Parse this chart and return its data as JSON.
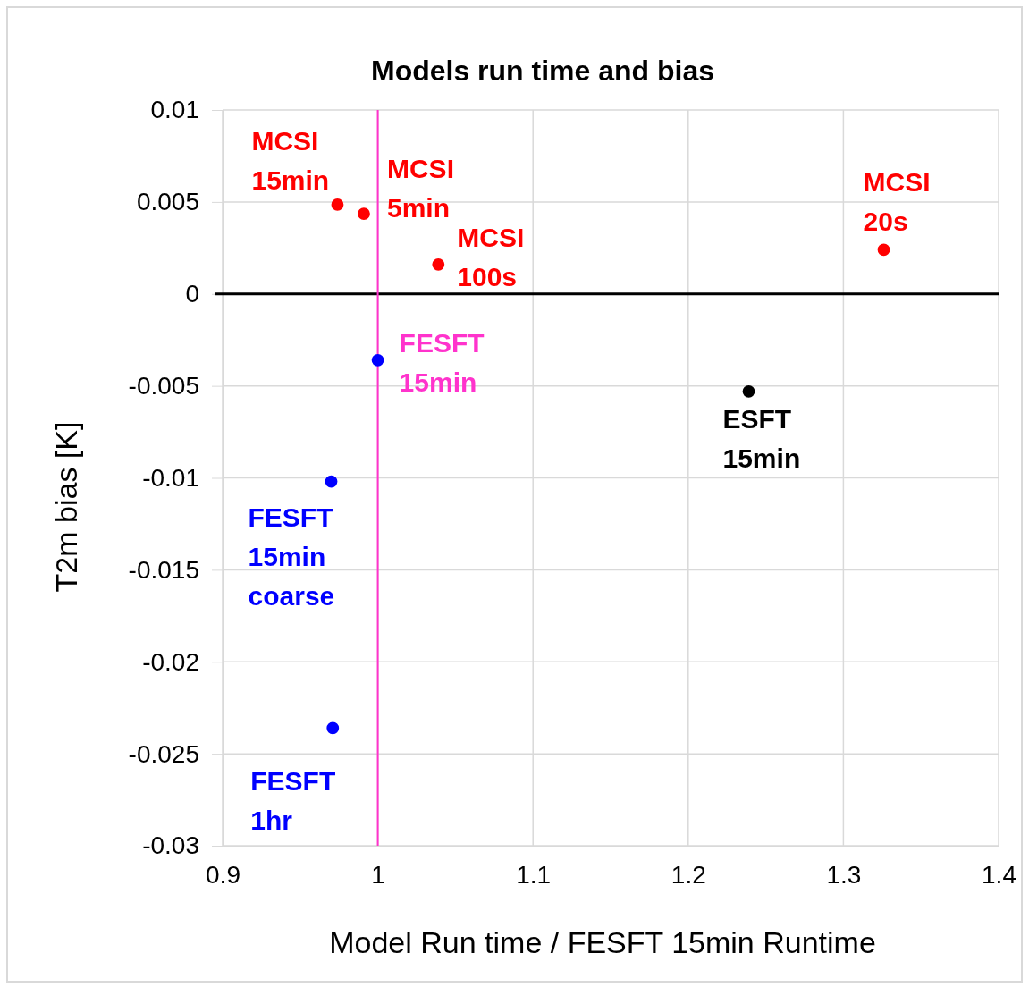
{
  "chart_data": {
    "type": "scatter",
    "title": "Models run time and bias",
    "xlabel": "Model Run time / FESFT 15min Runtime",
    "ylabel": "T2m bias [K]",
    "xlim": [
      0.9,
      1.4
    ],
    "xticks": [
      0.9,
      1,
      1.1,
      1.2,
      1.3,
      1.4
    ],
    "ylim": [
      -0.03,
      0.01
    ],
    "yticks": [
      -0.03,
      -0.025,
      -0.02,
      -0.015,
      -0.01,
      -0.005,
      0,
      0.005,
      0.01
    ],
    "grid": true,
    "marker": "circle",
    "ref_lines": [
      {
        "axis": "y",
        "value": 0,
        "color": "#000000"
      },
      {
        "axis": "x",
        "value": 1,
        "label": "FESFT 15min",
        "color": "#ff33cc"
      }
    ],
    "series": [
      {
        "name": "MCSI 15min",
        "color": "#ff0000",
        "x": [
          0.974
        ],
        "values": [
          0.00485
        ]
      },
      {
        "name": "MCSI 5min",
        "color": "#ff0000",
        "x": [
          0.991
        ],
        "values": [
          0.00436
        ]
      },
      {
        "name": "MCSI 100s",
        "color": "#ff0000",
        "x": [
          1.039
        ],
        "values": [
          0.0016
        ]
      },
      {
        "name": "MCSI 20s",
        "color": "#ff0000",
        "x": [
          1.326
        ],
        "values": [
          0.0024
        ]
      },
      {
        "color": "#0000ff",
        "x": [
          1.0
        ],
        "values": [
          -0.0036
        ]
      },
      {
        "name": "ESFT 15min",
        "color": "#000000",
        "x": [
          1.239
        ],
        "values": [
          -0.0053
        ]
      },
      {
        "name": "FESFT 15min coarse",
        "color": "#0000ff",
        "x": [
          0.97
        ],
        "values": [
          -0.0102
        ]
      },
      {
        "name": "FESFT 1hr",
        "color": "#0000ff",
        "x": [
          0.971
        ],
        "values": [
          -0.0236
        ]
      }
    ]
  }
}
